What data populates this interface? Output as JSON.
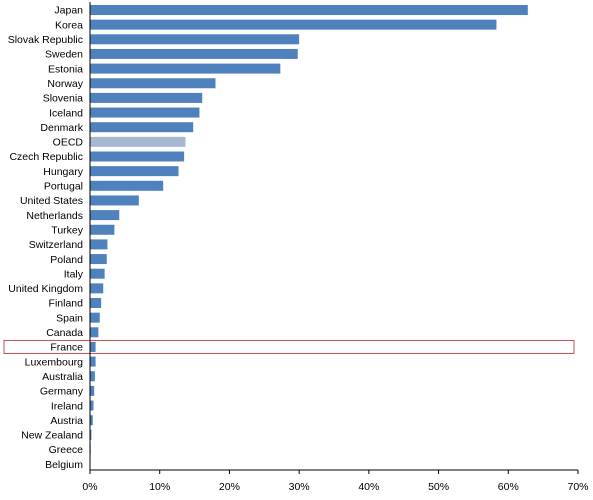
{
  "chart_data": {
    "type": "bar",
    "orientation": "horizontal",
    "categories": [
      "Japan",
      "Korea",
      "Slovak Republic",
      "Sweden",
      "Estonia",
      "Norway",
      "Slovenia",
      "Iceland",
      "Denmark",
      "OECD",
      "Czech Republic",
      "Hungary",
      "Portugal",
      "United States",
      "Netherlands",
      "Turkey",
      "Switzerland",
      "Poland",
      "Italy",
      "United Kingdom",
      "Finland",
      "Spain",
      "Canada",
      "France",
      "Luxembourg",
      "Australia",
      "Germany",
      "Ireland",
      "Austria",
      "New Zealand",
      "Greece",
      "Belgium"
    ],
    "values": [
      62.8,
      58.3,
      30.0,
      29.8,
      27.3,
      18.0,
      16.1,
      15.7,
      14.8,
      13.7,
      13.5,
      12.7,
      10.5,
      7.0,
      4.2,
      3.5,
      2.5,
      2.4,
      2.1,
      1.9,
      1.6,
      1.4,
      1.2,
      0.8,
      0.8,
      0.7,
      0.6,
      0.5,
      0.4,
      0.2,
      0.1,
      0.0
    ],
    "highlighted": "France",
    "average_category": "OECD",
    "xlim": [
      0,
      70
    ],
    "xticks": [
      0,
      10,
      20,
      30,
      40,
      50,
      60,
      70
    ],
    "tick_format": "percent",
    "title": "",
    "xlabel": "",
    "ylabel": "",
    "grid": false,
    "colors": {
      "bar": "#4F81BD",
      "average_bar": "#A6B8D0",
      "highlight_box": "#C0504D",
      "axis": "#000000"
    }
  }
}
